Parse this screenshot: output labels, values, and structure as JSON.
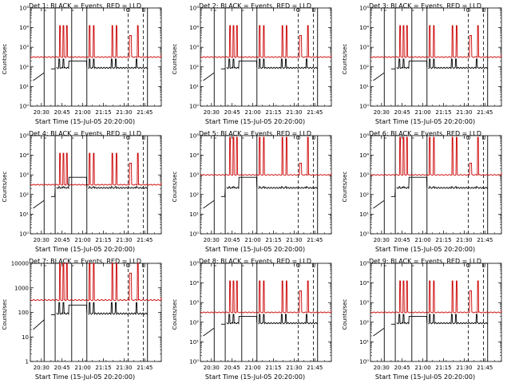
{
  "chart_data": [
    {
      "type": "line",
      "title": "Det 1: BLACK = Events, RED = LLD",
      "xlabel": "Start Time (15-Jul-05 20:20:00)",
      "ylabel": "Counts/sec",
      "ylog": true,
      "ylim": [
        1,
        100000
      ],
      "xlim": [
        "20:22",
        "21:57"
      ],
      "xticks": [
        "20:30",
        "20:45",
        "21:00",
        "21:15",
        "21:30",
        "21:45"
      ],
      "yticklabels": [
        "10⁰",
        "10¹",
        "10²",
        "10³",
        "10⁴",
        "10⁵"
      ],
      "markers": [
        {
          "time": "21:33",
          "label": "O"
        },
        {
          "time": "21:44",
          "label": "L"
        }
      ],
      "series": [
        {
          "color": "#000000",
          "level": 1.0
        },
        {
          "color": "#cc0000",
          "level": 1.0
        }
      ]
    },
    {
      "type": "line",
      "title": "Det 2: BLACK = Events, RED = LLD",
      "xlabel": "Start Time (15-Jul-05 20:20:00)",
      "ylabel": "Counts/sec",
      "ylog": true,
      "ylim": [
        1,
        100000
      ],
      "xlim": [
        "20:22",
        "21:57"
      ],
      "xticks": [
        "20:30",
        "20:45",
        "21:00",
        "21:15",
        "21:30",
        "21:45"
      ],
      "yticklabels": [
        "10⁰",
        "10¹",
        "10²",
        "10³",
        "10⁴",
        "10⁵"
      ],
      "markers": [
        {
          "time": "21:33",
          "label": "O"
        },
        {
          "time": "21:44",
          "label": "L"
        }
      ],
      "series": [
        {
          "color": "#000000",
          "level": 1.0
        },
        {
          "color": "#cc0000",
          "level": 1.0
        }
      ]
    },
    {
      "type": "line",
      "title": "Det 3: BLACK = Events, RED = LLD",
      "xlabel": "Start Time (15-Jul-05 20:20:00)",
      "ylabel": "Counts/sec",
      "ylog": true,
      "ylim": [
        1,
        100000
      ],
      "xlim": [
        "20:22",
        "21:57"
      ],
      "xticks": [
        "20:30",
        "20:45",
        "21:00",
        "21:15",
        "21:30",
        "21:45"
      ],
      "yticklabels": [
        "10⁰",
        "10¹",
        "10²",
        "10³",
        "10⁴",
        "10⁵"
      ],
      "markers": [
        {
          "time": "21:33",
          "label": "O"
        },
        {
          "time": "21:44",
          "label": "L"
        }
      ],
      "series": [
        {
          "color": "#000000",
          "level": 1.0
        },
        {
          "color": "#cc0000",
          "level": 1.0
        }
      ]
    },
    {
      "type": "line",
      "title": "Det 4: BLACK = Events, RED = LLD",
      "xlabel": "Start Time (15-Jul-05 20:20:00)",
      "ylabel": "Counts/sec",
      "ylog": true,
      "ylim": [
        1,
        100000
      ],
      "xlim": [
        "20:22",
        "21:57"
      ],
      "xticks": [
        "20:30",
        "20:45",
        "21:00",
        "21:15",
        "21:30",
        "21:45"
      ],
      "yticklabels": [
        "10⁰",
        "10¹",
        "10²",
        "10³",
        "10⁴",
        "10⁵"
      ],
      "markers": [
        {
          "time": "21:33",
          "label": "O"
        },
        {
          "time": "21:44",
          "label": "L"
        }
      ],
      "series": [
        {
          "color": "#000000",
          "level": 1.2
        },
        {
          "color": "#cc0000",
          "level": 1.0
        }
      ]
    },
    {
      "type": "line",
      "title": "Det 5: BLACK = Events, RED = LLD",
      "xlabel": "Start Time (15-Jul-05 20:20:00)",
      "ylabel": "Counts/sec",
      "ylog": true,
      "ylim": [
        1,
        100000
      ],
      "xlim": [
        "20:22",
        "21:57"
      ],
      "xticks": [
        "20:30",
        "20:45",
        "21:00",
        "21:15",
        "21:30",
        "21:45"
      ],
      "yticklabels": [
        "10⁰",
        "10¹",
        "10²",
        "10³",
        "10⁴",
        "10⁵"
      ],
      "markers": [
        {
          "time": "21:33",
          "label": "O"
        },
        {
          "time": "21:44",
          "label": "L"
        }
      ],
      "series": [
        {
          "color": "#000000",
          "level": 1.2
        },
        {
          "color": "#cc0000",
          "level": 1.2
        }
      ]
    },
    {
      "type": "line",
      "title": "Det 6: BLACK = Events, RED = LLD",
      "xlabel": "Start Time (15-Jul-05 20:20:00)",
      "ylabel": "Counts/sec",
      "ylog": true,
      "ylim": [
        1,
        100000
      ],
      "xlim": [
        "20:22",
        "21:57"
      ],
      "xticks": [
        "20:30",
        "20:45",
        "21:00",
        "21:15",
        "21:30",
        "21:45"
      ],
      "yticklabels": [
        "10⁰",
        "10¹",
        "10²",
        "10³",
        "10⁴",
        "10⁵"
      ],
      "markers": [
        {
          "time": "21:33",
          "label": "O"
        },
        {
          "time": "21:44",
          "label": "L"
        }
      ],
      "series": [
        {
          "color": "#000000",
          "level": 1.2
        },
        {
          "color": "#cc0000",
          "level": 1.2
        }
      ]
    },
    {
      "type": "line",
      "title": "Det 7: BLACK = Events, RED = LLD",
      "xlabel": "Start Time (15-Jul-05 20:20:00)",
      "ylabel": "Counts/sec",
      "ylog": true,
      "ylim": [
        1,
        10000
      ],
      "xlim": [
        "20:22",
        "21:57"
      ],
      "xticks": [
        "20:30",
        "20:45",
        "21:00",
        "21:15",
        "21:30",
        "21:45"
      ],
      "yticklabels": [
        "1",
        "10",
        "100",
        "1000",
        "10000"
      ],
      "markers": [
        {
          "time": "21:33",
          "label": "O"
        },
        {
          "time": "21:44",
          "label": "L"
        }
      ],
      "series": [
        {
          "color": "#000000",
          "level": 1.0
        },
        {
          "color": "#cc0000",
          "level": 1.0
        }
      ]
    },
    {
      "type": "line",
      "title": "Det 8: BLACK = Events, RED = LLD",
      "xlabel": "Start Time (15-Jul-05 20:20:00)",
      "ylabel": "Counts/sec",
      "ylog": true,
      "ylim": [
        1,
        100000
      ],
      "xlim": [
        "20:22",
        "21:57"
      ],
      "xticks": [
        "20:30",
        "20:45",
        "21:00",
        "21:15",
        "21:30",
        "21:45"
      ],
      "yticklabels": [
        "10⁰",
        "10¹",
        "10²",
        "10³",
        "10⁴",
        "10⁵"
      ],
      "markers": [
        {
          "time": "21:33",
          "label": "O"
        },
        {
          "time": "21:44",
          "label": "L"
        }
      ],
      "series": [
        {
          "color": "#000000",
          "level": 1.0
        },
        {
          "color": "#cc0000",
          "level": 1.0
        }
      ]
    },
    {
      "type": "line",
      "title": "Det 9: BLACK = Events, RED = LLD",
      "xlabel": "Start Time (15-Jul-05 20:20:00)",
      "ylabel": "Counts/sec",
      "ylog": true,
      "ylim": [
        1,
        100000
      ],
      "xlim": [
        "20:22",
        "21:57"
      ],
      "xticks": [
        "20:30",
        "20:45",
        "21:00",
        "21:15",
        "21:30",
        "21:45"
      ],
      "yticklabels": [
        "10⁰",
        "10¹",
        "10²",
        "10³",
        "10⁴",
        "10⁵"
      ],
      "markers": [
        {
          "time": "21:33",
          "label": "O"
        },
        {
          "time": "21:44",
          "label": "L"
        }
      ],
      "series": [
        {
          "color": "#000000",
          "level": 1.0
        },
        {
          "color": "#cc0000",
          "level": 1.0
        }
      ]
    }
  ]
}
